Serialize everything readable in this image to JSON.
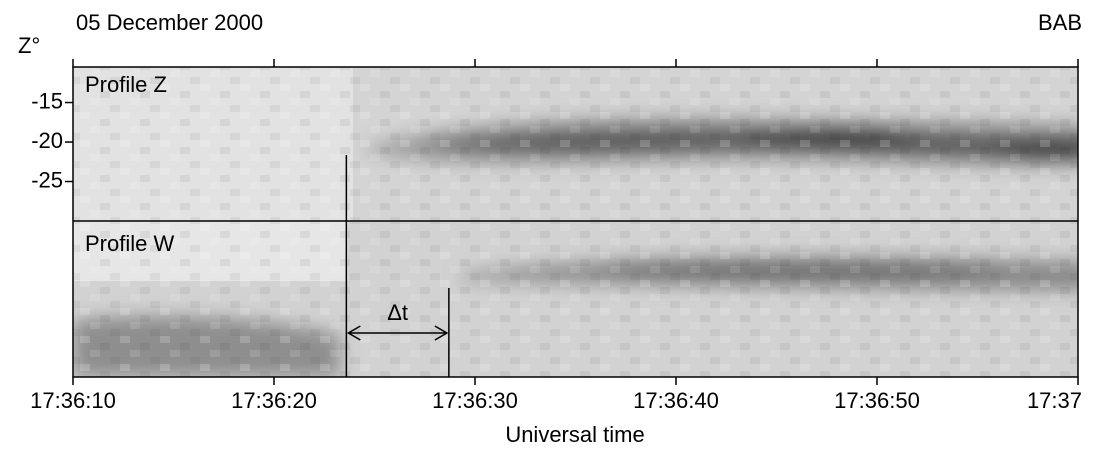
{
  "chart_data": {
    "type": "image",
    "title": "05 December 2000",
    "station": "BAB",
    "ylabel": "Z°",
    "xlabel": "Universal time",
    "panels": [
      "Profile Z",
      "Profile W"
    ],
    "xlim": [
      10,
      60
    ],
    "xticks": [
      {
        "value": 10,
        "label": "17:36:10"
      },
      {
        "value": 20,
        "label": "17:36:20"
      },
      {
        "value": 30,
        "label": "17:36:30"
      },
      {
        "value": 40,
        "label": "17:36:40"
      },
      {
        "value": 50,
        "label": "17:36:50"
      },
      {
        "value": 60,
        "label": "17:37"
      }
    ],
    "ylim": [
      -30,
      -10.5
    ],
    "yticks": [
      -15,
      -20,
      -25
    ],
    "markers": [
      23.6,
      28.7
    ],
    "annotation": "Δt"
  }
}
